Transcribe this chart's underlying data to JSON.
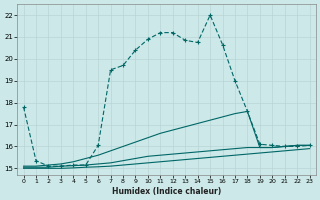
{
  "title": "",
  "xlabel": "Humidex (Indice chaleur)",
  "bg_color": "#cce8e8",
  "grid_color": "#b8d4d4",
  "line_color": "#006666",
  "xlim": [
    -0.5,
    23.5
  ],
  "ylim": [
    14.7,
    22.5
  ],
  "xticks": [
    0,
    1,
    2,
    3,
    4,
    5,
    6,
    7,
    8,
    9,
    10,
    11,
    12,
    13,
    14,
    15,
    16,
    17,
    18,
    19,
    20,
    21,
    22,
    23
  ],
  "yticks": [
    15,
    16,
    17,
    18,
    19,
    20,
    21,
    22
  ],
  "line_max": [
    [
      0,
      17.8
    ],
    [
      1,
      15.35
    ],
    [
      2,
      15.1
    ],
    [
      3,
      15.1
    ],
    [
      4,
      15.15
    ],
    [
      5,
      15.15
    ],
    [
      6,
      16.05
    ],
    [
      7,
      19.5
    ],
    [
      8,
      19.7
    ],
    [
      9,
      20.4
    ],
    [
      10,
      20.9
    ],
    [
      11,
      21.2
    ],
    [
      12,
      21.2
    ],
    [
      13,
      20.85
    ],
    [
      14,
      20.75
    ],
    [
      15,
      22.0
    ],
    [
      16,
      20.65
    ],
    [
      17,
      19.0
    ],
    [
      18,
      17.6
    ],
    [
      19,
      16.1
    ],
    [
      20,
      16.05
    ],
    [
      21,
      16.0
    ],
    [
      22,
      16.0
    ],
    [
      23,
      16.05
    ]
  ],
  "line_diag": [
    [
      0,
      15.1
    ],
    [
      1,
      15.1
    ],
    [
      2,
      15.15
    ],
    [
      3,
      15.2
    ],
    [
      4,
      15.3
    ],
    [
      5,
      15.45
    ],
    [
      6,
      15.6
    ],
    [
      7,
      15.8
    ],
    [
      8,
      16.0
    ],
    [
      9,
      16.2
    ],
    [
      10,
      16.4
    ],
    [
      11,
      16.6
    ],
    [
      12,
      16.75
    ],
    [
      13,
      16.9
    ],
    [
      14,
      17.05
    ],
    [
      15,
      17.2
    ],
    [
      16,
      17.35
    ],
    [
      17,
      17.5
    ],
    [
      18,
      17.6
    ],
    [
      19,
      15.95
    ],
    [
      20,
      15.95
    ],
    [
      21,
      16.0
    ],
    [
      22,
      16.05
    ],
    [
      23,
      16.05
    ]
  ],
  "line_mid": [
    [
      0,
      15.05
    ],
    [
      1,
      15.05
    ],
    [
      2,
      15.05
    ],
    [
      3,
      15.1
    ],
    [
      4,
      15.12
    ],
    [
      5,
      15.15
    ],
    [
      6,
      15.2
    ],
    [
      7,
      15.25
    ],
    [
      8,
      15.35
    ],
    [
      9,
      15.45
    ],
    [
      10,
      15.55
    ],
    [
      11,
      15.6
    ],
    [
      12,
      15.65
    ],
    [
      13,
      15.7
    ],
    [
      14,
      15.75
    ],
    [
      15,
      15.8
    ],
    [
      16,
      15.85
    ],
    [
      17,
      15.9
    ],
    [
      18,
      15.95
    ],
    [
      19,
      15.95
    ],
    [
      20,
      15.95
    ],
    [
      21,
      16.0
    ],
    [
      22,
      16.05
    ],
    [
      23,
      16.05
    ]
  ],
  "line_min": [
    [
      0,
      15.0
    ],
    [
      1,
      15.0
    ],
    [
      2,
      15.0
    ],
    [
      3,
      15.0
    ],
    [
      4,
      15.02
    ],
    [
      5,
      15.05
    ],
    [
      6,
      15.07
    ],
    [
      7,
      15.1
    ],
    [
      8,
      15.15
    ],
    [
      9,
      15.2
    ],
    [
      10,
      15.25
    ],
    [
      11,
      15.3
    ],
    [
      12,
      15.35
    ],
    [
      13,
      15.4
    ],
    [
      14,
      15.45
    ],
    [
      15,
      15.5
    ],
    [
      16,
      15.55
    ],
    [
      17,
      15.6
    ],
    [
      18,
      15.65
    ],
    [
      19,
      15.7
    ],
    [
      20,
      15.75
    ],
    [
      21,
      15.8
    ],
    [
      22,
      15.85
    ],
    [
      23,
      15.9
    ]
  ]
}
